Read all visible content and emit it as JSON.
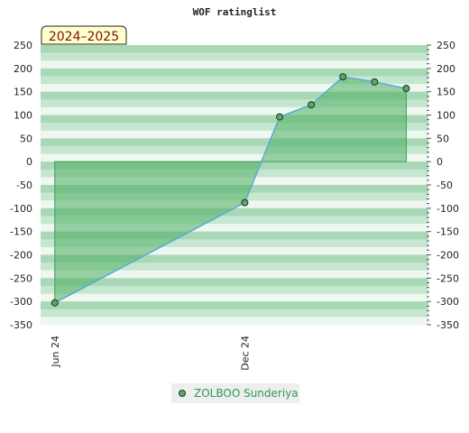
{
  "chart_data": {
    "type": "line",
    "title": "WOF ratinglist",
    "badge": "2024–2025",
    "xlabel": "",
    "ylabel": "",
    "ylim": [
      -350,
      250
    ],
    "yticks": [
      -350,
      -300,
      -250,
      -200,
      -150,
      -100,
      -50,
      0,
      50,
      100,
      150,
      200,
      250
    ],
    "x_tick_labels": [
      {
        "label": "Jun 24",
        "x": 0
      },
      {
        "label": "Dec 24",
        "x": 6
      }
    ],
    "xlim": [
      -0.45,
      11.8
    ],
    "series": [
      {
        "name": "ZOLBOO Sunderiya",
        "x": [
          0,
          6,
          7.1,
          8.1,
          9.1,
          10.1,
          11.1
        ],
        "values": [
          -303,
          -88,
          96,
          122,
          182,
          171,
          157
        ]
      }
    ],
    "legend": "bottom-center",
    "colors": {
      "line": "#5aaad6",
      "fill": "#4fae62",
      "marker": "#3a8a4a",
      "band_dark": "#a9d8b6",
      "band_mid": "#c6e7cf",
      "band_light": "#eef7f0"
    }
  }
}
